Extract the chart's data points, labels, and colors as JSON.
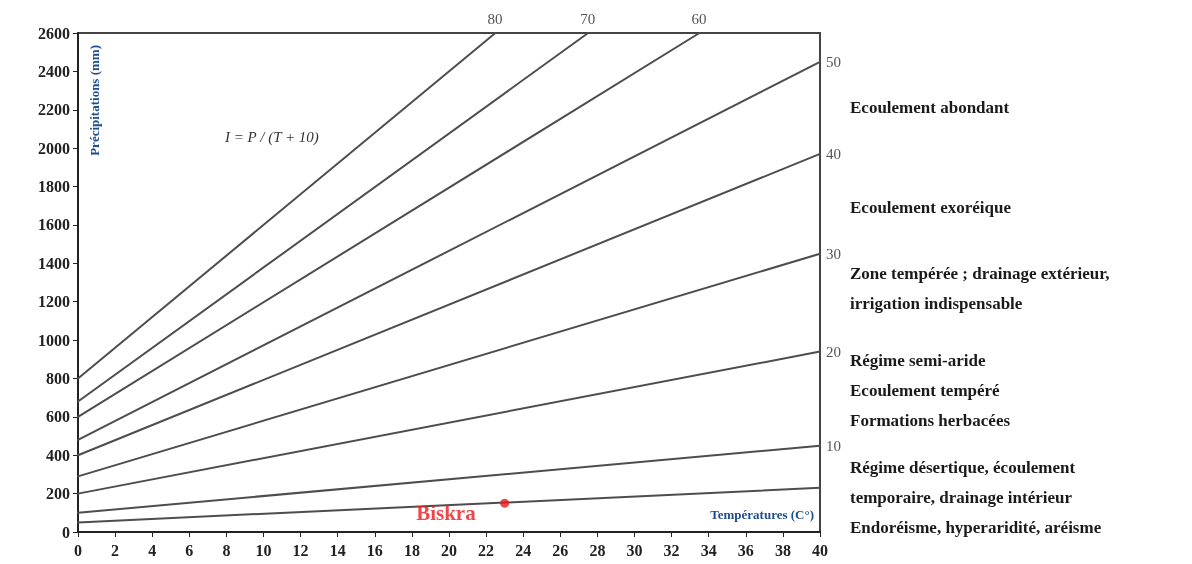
{
  "chart_data": {
    "type": "line",
    "xlabel": "Températures (C°)",
    "ylabel": "Précipitations (mm)",
    "xlim": [
      0,
      40
    ],
    "ylim": [
      0,
      2600
    ],
    "xticks": [
      0,
      2,
      4,
      6,
      8,
      10,
      12,
      14,
      16,
      18,
      20,
      22,
      24,
      26,
      28,
      30,
      32,
      34,
      36,
      38,
      40
    ],
    "yticks": [
      0,
      200,
      400,
      600,
      800,
      1000,
      1200,
      1400,
      1600,
      1800,
      2000,
      2200,
      2400,
      2600
    ],
    "grid": false,
    "legend": false,
    "line_style": "solid",
    "series": [
      {
        "name": "80",
        "color": "#4d4d4d",
        "x": [
          0,
          22.5
        ],
        "values": [
          800,
          2600
        ]
      },
      {
        "name": "70",
        "color": "#4d4d4d",
        "x": [
          0,
          27.5
        ],
        "values": [
          680,
          2600
        ]
      },
      {
        "name": "60",
        "color": "#4d4d4d",
        "x": [
          0,
          33.5
        ],
        "values": [
          600,
          2600
        ]
      },
      {
        "name": "50",
        "color": "#4d4d4d",
        "x": [
          0,
          40
        ],
        "values": [
          480,
          2450
        ]
      },
      {
        "name": "40",
        "color": "#4d4d4d",
        "x": [
          0,
          40
        ],
        "values": [
          400,
          1970
        ]
      },
      {
        "name": "30",
        "color": "#4d4d4d",
        "x": [
          0,
          40
        ],
        "values": [
          290,
          1450
        ]
      },
      {
        "name": "20",
        "color": "#4d4d4d",
        "x": [
          0,
          40
        ],
        "values": [
          200,
          940
        ]
      },
      {
        "name": "10",
        "color": "#4d4d4d",
        "x": [
          0,
          40
        ],
        "values": [
          100,
          450
        ]
      },
      {
        "name": null,
        "color": "#4d4d4d",
        "x": [
          0,
          40
        ],
        "values": [
          50,
          230
        ]
      },
      {
        "name": "Biskra",
        "type": "scatter",
        "marker": "circle",
        "color": "#e8191b",
        "x": [
          23
        ],
        "values": [
          150
        ]
      }
    ],
    "annotations": [
      "I = P / (T + 10)",
      "Ecoulement abondant",
      "Ecoulement exoréique",
      "Zone tempérée ; drainage extérieur,\nirrigation indispensable",
      "Régime semi-aride\nEcoulement tempéré\nFormations herbacées",
      "Régime désertique, écoulement\ntemporaire, drainage intérieur\nEndoréisme, hyperaridité, aréisme"
    ]
  }
}
